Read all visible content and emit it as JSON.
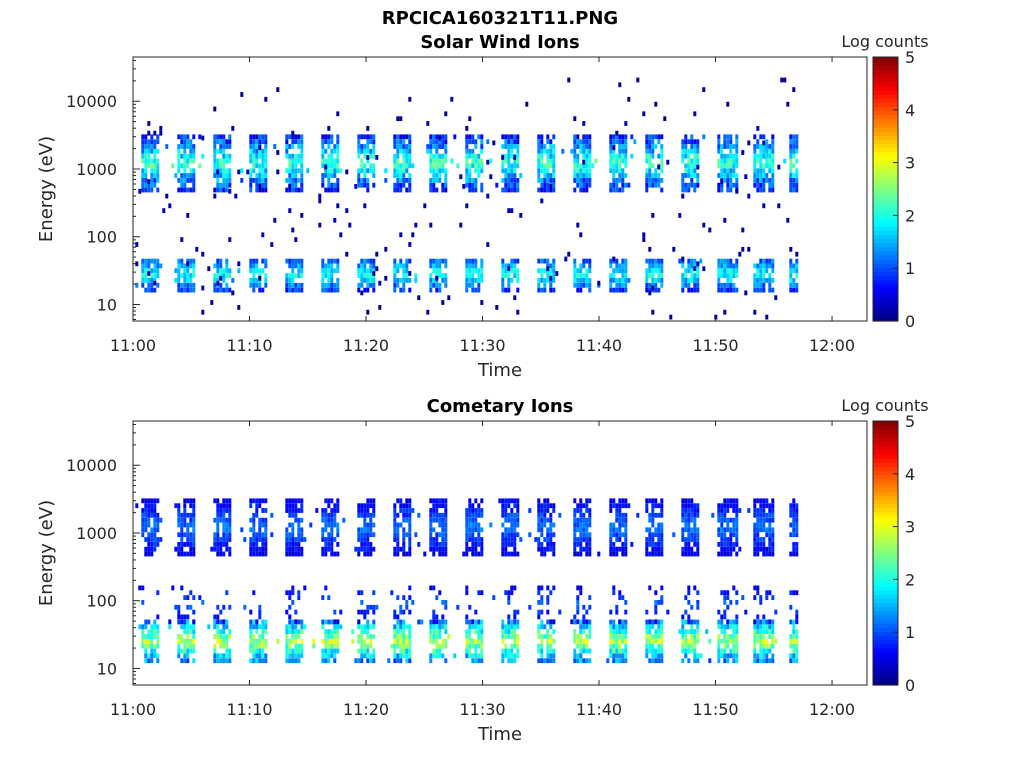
{
  "figure_title": "RPCICA160321T11.PNG",
  "colorbar": {
    "label": "Log counts",
    "range": [
      0,
      5
    ],
    "ticks": [
      "0",
      "1",
      "2",
      "3",
      "4",
      "5"
    ],
    "colormap": "jet"
  },
  "chart_data": [
    {
      "type": "heatmap",
      "title": "Solar Wind Ions",
      "xlabel": "Time",
      "ylabel": "Energy (eV)",
      "x_ticks": [
        "11:00",
        "11:10",
        "11:20",
        "11:30",
        "11:40",
        "11:50",
        "12:00"
      ],
      "y_ticks": [
        "10",
        "100",
        "1000",
        "10000"
      ],
      "y_scale": "log",
      "ylim": [
        5.7,
        45000
      ],
      "xlim_minutes": [
        0,
        63
      ],
      "data_extent_minutes": [
        0,
        57
      ],
      "z_range": [
        0,
        5
      ],
      "sweep_period_minutes": 3.1,
      "bands": [
        {
          "name": "low-energy",
          "energy_range": [
            15,
            45
          ],
          "log_counts": [
            0.5,
            2.3
          ]
        },
        {
          "name": "mid-energy",
          "energy_range": [
            450,
            2800
          ],
          "log_counts": [
            0.3,
            2.6
          ]
        },
        {
          "name": "sparse",
          "energy_range": [
            6,
            20000
          ],
          "log_counts": [
            0,
            0.3
          ]
        }
      ]
    },
    {
      "type": "heatmap",
      "title": "Cometary Ions",
      "xlabel": "Time",
      "ylabel": "Energy (eV)",
      "x_ticks": [
        "11:00",
        "11:10",
        "11:20",
        "11:30",
        "11:40",
        "11:50",
        "12:00"
      ],
      "y_ticks": [
        "10",
        "100",
        "1000",
        "10000"
      ],
      "y_scale": "log",
      "ylim": [
        5.7,
        45000
      ],
      "xlim_minutes": [
        0,
        63
      ],
      "data_extent_minutes": [
        0,
        57
      ],
      "z_range": [
        0,
        5
      ],
      "sweep_period_minutes": 3.1,
      "bands": [
        {
          "name": "low-energy",
          "energy_range": [
            12,
            45
          ],
          "log_counts": [
            0.8,
            3.2
          ]
        },
        {
          "name": "tail",
          "energy_range": [
            45,
            150
          ],
          "log_counts": [
            0.3,
            1.3
          ]
        },
        {
          "name": "mid-energy",
          "energy_range": [
            450,
            2800
          ],
          "log_counts": [
            0.3,
            1.4
          ]
        }
      ]
    }
  ]
}
